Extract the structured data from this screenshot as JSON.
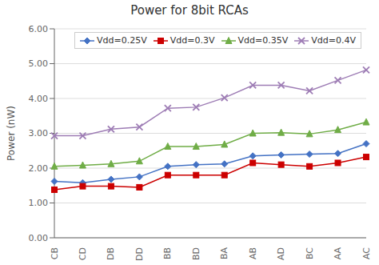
{
  "chart_data": {
    "type": "line",
    "title": "Power for 8bit RCAs",
    "ylabel": "Power (nW)",
    "categories": [
      "CB",
      "CD",
      "DB",
      "DD",
      "BB",
      "BD",
      "BA",
      "AB",
      "AD",
      "BC",
      "AA",
      "AC"
    ],
    "series": [
      {
        "name": "Vdd=0.25V",
        "color": "#4472C4",
        "marker": "diamond",
        "values": [
          1.62,
          1.58,
          1.68,
          1.75,
          2.05,
          2.1,
          2.12,
          2.35,
          2.38,
          2.4,
          2.42,
          2.7
        ]
      },
      {
        "name": "Vdd=0.3V",
        "color": "#CC0000",
        "marker": "square",
        "values": [
          1.38,
          1.48,
          1.48,
          1.45,
          1.8,
          1.8,
          1.8,
          2.15,
          2.1,
          2.05,
          2.15,
          2.32
        ]
      },
      {
        "name": "Vdd=0.35V",
        "color": "#70AD47",
        "marker": "triangle",
        "values": [
          2.05,
          2.08,
          2.12,
          2.2,
          2.62,
          2.62,
          2.68,
          3.0,
          3.02,
          2.98,
          3.1,
          3.32
        ]
      },
      {
        "name": "Vdd=0.4V",
        "color": "#9E7DB5",
        "marker": "x",
        "values": [
          2.93,
          2.93,
          3.12,
          3.18,
          3.72,
          3.75,
          4.02,
          4.38,
          4.38,
          4.22,
          4.52,
          4.82
        ]
      }
    ],
    "ylim": [
      0.0,
      6.0
    ],
    "yticks": [
      {
        "value": 0,
        "label": "0.00"
      },
      {
        "value": 1,
        "label": "1.00"
      },
      {
        "value": 2,
        "label": "2.00"
      },
      {
        "value": 3,
        "label": "3.00"
      },
      {
        "value": 4,
        "label": "4.00"
      },
      {
        "value": 5,
        "label": "5.00"
      },
      {
        "value": 6,
        "label": "6.00"
      }
    ],
    "grid": true,
    "legend": "upper right"
  }
}
